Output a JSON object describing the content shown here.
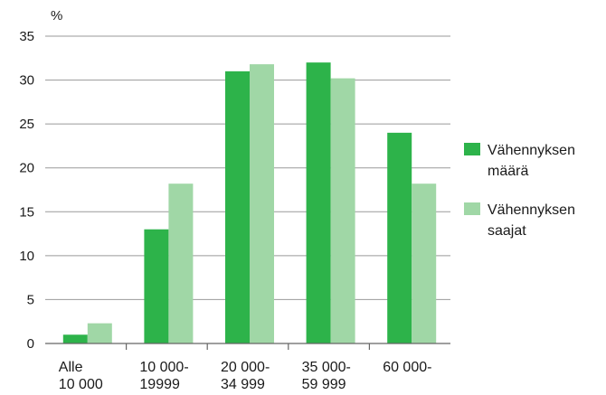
{
  "chart_data": {
    "type": "bar",
    "ylabel": "%",
    "ylim": [
      0,
      35
    ],
    "yticks": [
      0,
      5,
      10,
      15,
      20,
      25,
      30,
      35
    ],
    "grid": true,
    "legend_position": "right",
    "categories": [
      [
        "Alle",
        "10 000"
      ],
      [
        "10 000-",
        "19999"
      ],
      [
        "20 000-",
        "34 999"
      ],
      [
        "35 000-",
        "59 999"
      ],
      [
        "60 000-",
        ""
      ]
    ],
    "series": [
      {
        "name_lines": [
          "Vähennyksen",
          "määrä"
        ],
        "color": "#2db34a",
        "values": [
          1,
          13,
          31,
          32,
          24
        ]
      },
      {
        "name_lines": [
          "Vähennyksen",
          "saajat"
        ],
        "color": "#a0d7a6",
        "values": [
          2.3,
          18.2,
          31.8,
          30.2,
          18.2
        ]
      }
    ]
  }
}
